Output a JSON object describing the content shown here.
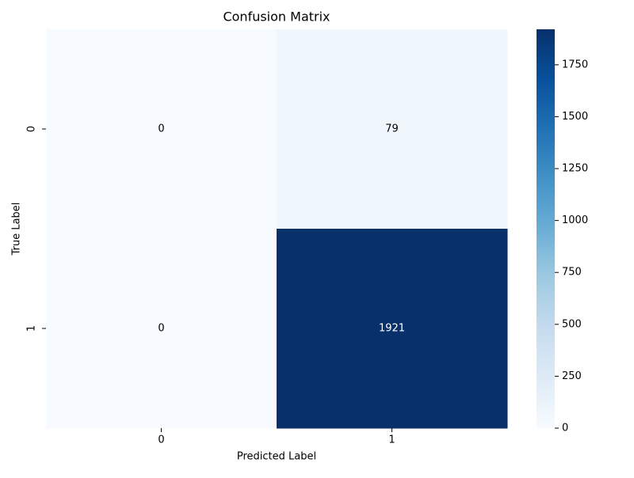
{
  "chart_data": {
    "type": "heatmap",
    "title": "Confusion Matrix",
    "x_label": "Predicted Label",
    "y_label": "True Label",
    "x_categories": [
      "0",
      "1"
    ],
    "y_categories": [
      "0",
      "1"
    ],
    "z": [
      [
        0,
        79
      ],
      [
        0,
        1921
      ]
    ],
    "colormap": "Blues",
    "zlim": [
      0,
      1921
    ],
    "zticks": [
      0,
      250,
      500,
      750,
      1000,
      1250,
      1500,
      1750
    ]
  }
}
